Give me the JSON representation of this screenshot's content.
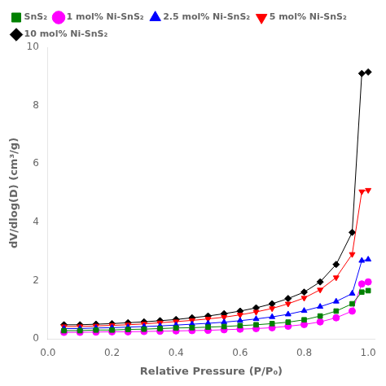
{
  "chart_data": {
    "type": "line",
    "xlabel": "Relative Pressure (P/P₀)",
    "ylabel": "dV/dlog(D) (cm³/g)",
    "x": [
      0.05,
      0.1,
      0.15,
      0.2,
      0.25,
      0.3,
      0.35,
      0.4,
      0.45,
      0.5,
      0.55,
      0.6,
      0.65,
      0.7,
      0.75,
      0.8,
      0.85,
      0.9,
      0.95,
      0.98,
      1.0
    ],
    "series": [
      {
        "name": "SnS₂",
        "color": "#008000",
        "marker": "square",
        "values": [
          0.28,
          0.28,
          0.3,
          0.3,
          0.32,
          0.33,
          0.35,
          0.37,
          0.38,
          0.4,
          0.42,
          0.45,
          0.48,
          0.52,
          0.57,
          0.65,
          0.78,
          0.95,
          1.2,
          1.6,
          1.65
        ]
      },
      {
        "name": "1 mol% Ni-SnS₂",
        "color": "#ff00ff",
        "marker": "circle",
        "values": [
          0.22,
          0.22,
          0.23,
          0.24,
          0.24,
          0.25,
          0.26,
          0.27,
          0.28,
          0.29,
          0.31,
          0.33,
          0.35,
          0.38,
          0.43,
          0.49,
          0.58,
          0.72,
          0.95,
          1.88,
          1.95
        ]
      },
      {
        "name": "2.5 mol% Ni-SnS₂",
        "color": "#0000ff",
        "marker": "triangle-up",
        "values": [
          0.35,
          0.35,
          0.37,
          0.38,
          0.4,
          0.42,
          0.44,
          0.47,
          0.5,
          0.53,
          0.57,
          0.62,
          0.68,
          0.75,
          0.84,
          0.96,
          1.1,
          1.28,
          1.55,
          2.68,
          2.72
        ]
      },
      {
        "name": "5 mol% Ni-SnS₂",
        "color": "#ff0000",
        "marker": "triangle-down",
        "values": [
          0.42,
          0.42,
          0.44,
          0.46,
          0.48,
          0.51,
          0.55,
          0.59,
          0.63,
          0.68,
          0.74,
          0.82,
          0.92,
          1.04,
          1.2,
          1.4,
          1.68,
          2.1,
          2.9,
          5.05,
          5.1
        ]
      },
      {
        "name": "10 mol% Ni-SnS₂",
        "color": "#000000",
        "marker": "diamond",
        "values": [
          0.48,
          0.48,
          0.5,
          0.52,
          0.55,
          0.58,
          0.62,
          0.66,
          0.72,
          0.78,
          0.86,
          0.95,
          1.06,
          1.2,
          1.38,
          1.6,
          1.95,
          2.55,
          3.65,
          9.1,
          9.15
        ]
      }
    ],
    "xlim": [
      0.0,
      1.02
    ],
    "xticks": [
      {
        "value": 0.0,
        "label": "0.0"
      },
      0.2,
      0.4,
      0.6,
      0.8,
      {
        "value": 1.0,
        "label": "1.0"
      }
    ],
    "ylim": [
      0,
      10
    ],
    "yticks": [
      0,
      2,
      4,
      6,
      8,
      10
    ],
    "legend": "upper left",
    "grid": false
  }
}
